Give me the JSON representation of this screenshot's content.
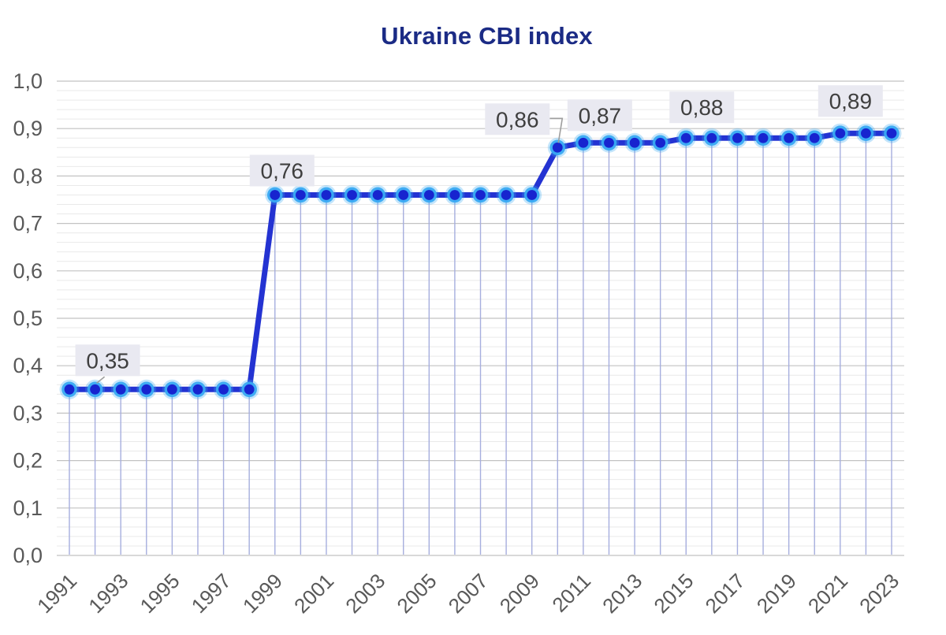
{
  "chart": {
    "title": "Ukraine CBI index"
  },
  "chart_data": {
    "type": "line",
    "title": "Ukraine CBI index",
    "x": [
      1991,
      1992,
      1993,
      1994,
      1995,
      1996,
      1997,
      1998,
      1999,
      2000,
      2001,
      2002,
      2003,
      2004,
      2005,
      2006,
      2007,
      2008,
      2009,
      2010,
      2011,
      2012,
      2013,
      2014,
      2015,
      2016,
      2017,
      2018,
      2019,
      2020,
      2021,
      2022,
      2023
    ],
    "values": [
      0.35,
      0.35,
      0.35,
      0.35,
      0.35,
      0.35,
      0.35,
      0.35,
      0.76,
      0.76,
      0.76,
      0.76,
      0.76,
      0.76,
      0.76,
      0.76,
      0.76,
      0.76,
      0.76,
      0.86,
      0.87,
      0.87,
      0.87,
      0.87,
      0.88,
      0.88,
      0.88,
      0.88,
      0.88,
      0.88,
      0.89,
      0.89,
      0.89
    ],
    "xtick_labels": [
      "1991",
      "1993",
      "1995",
      "1997",
      "1999",
      "2001",
      "2003",
      "2005",
      "2007",
      "2009",
      "2011",
      "2013",
      "2015",
      "2017",
      "2019",
      "2021",
      "2023"
    ],
    "ytick_labels": [
      "0,0",
      "0,1",
      "0,2",
      "0,3",
      "0,4",
      "0,5",
      "0,6",
      "0,7",
      "0,8",
      "0,9",
      "1,0"
    ],
    "ylim": [
      0,
      1
    ],
    "xlabel": "",
    "ylabel": "",
    "grid": {
      "major_step": 0.1,
      "minor_step": 0.02,
      "drop_lines": true
    },
    "legend": "none",
    "decimal_separator": ",",
    "annotations": [
      {
        "text": "0,35",
        "year": 1992,
        "leader": "diagonal"
      },
      {
        "text": "0,76",
        "year": 1999,
        "leader": null
      },
      {
        "text": "0,86",
        "year": 2010,
        "leader": "elbow"
      },
      {
        "text": "0,87",
        "year": 2011,
        "leader": null
      },
      {
        "text": "0,88",
        "year": 2015,
        "leader": null
      },
      {
        "text": "0,89",
        "year": 2021,
        "leader": null
      }
    ]
  },
  "colors": {
    "title": "#1b2b85",
    "line": "#2433d2",
    "marker_core": "#1724cf",
    "marker_ring": "#38a9f3",
    "drop_line": "#a6aede",
    "grid_major": "#c2c2c2",
    "grid_minor": "#e9e9e9",
    "axis_text": "#595959",
    "annotation_text": "#3f3f3f",
    "annotation_bg": "#e9e9f1",
    "leader": "#9e9e9e",
    "background": "#ffffff"
  }
}
